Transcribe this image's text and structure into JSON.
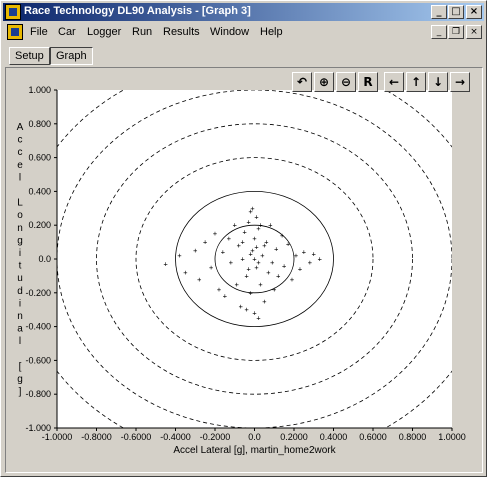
{
  "window": {
    "title": "Race Technology DL90 Analysis - [Graph 3]"
  },
  "menubar": [
    "File",
    "Car",
    "Logger",
    "Run",
    "Results",
    "Window",
    "Help"
  ],
  "tabs": [
    {
      "label": "Setup",
      "active": false
    },
    {
      "label": "Graph",
      "active": true
    }
  ],
  "toolbar": [
    {
      "icon": "undo-zoom-icon",
      "glyph": "↶"
    },
    {
      "icon": "zoom-in-icon",
      "glyph": "⊕"
    },
    {
      "icon": "zoom-out-icon",
      "glyph": "⊖"
    },
    {
      "icon": "zoom-reset-icon",
      "glyph": "R"
    },
    {
      "icon": "pan-left-icon",
      "glyph": "←"
    },
    {
      "icon": "pan-up-icon",
      "glyph": "↑"
    },
    {
      "icon": "pan-down-icon",
      "glyph": "↓"
    },
    {
      "icon": "pan-right-icon",
      "glyph": "→"
    }
  ],
  "chart_data": {
    "type": "scatter",
    "title": "",
    "xlabel": "Accel Lateral [g], martin_home2work",
    "ylabel": "Accel Longitudinal [g]",
    "xlim": [
      -1.0,
      1.0
    ],
    "ylim": [
      -1.0,
      1.0
    ],
    "x_ticks": [
      "-1.0000",
      "-0.8000",
      "-0.6000",
      "-0.4000",
      "-0.2000",
      "0.0",
      "0.2000",
      "0.4000",
      "0.6000",
      "0.8000",
      "1.0000"
    ],
    "y_ticks": [
      "1.000",
      "0.800",
      "0.600",
      "0.400",
      "0.200",
      "0.0",
      "-0.200",
      "-0.400",
      "-0.600",
      "-0.800",
      "-1.000"
    ],
    "reference_circles": [
      {
        "radius": 0.2,
        "style": "solid"
      },
      {
        "radius": 0.4,
        "style": "solid"
      },
      {
        "radius": 0.6,
        "style": "dashed"
      },
      {
        "radius": 0.8,
        "style": "dashed"
      },
      {
        "radius": 1.0,
        "style": "dashed"
      },
      {
        "radius": 1.2,
        "style": "dashed"
      }
    ],
    "series": [
      {
        "marker": "+",
        "points": [
          [
            -0.45,
            -0.03
          ],
          [
            -0.38,
            0.02
          ],
          [
            -0.35,
            -0.08
          ],
          [
            -0.3,
            0.05
          ],
          [
            -0.28,
            -0.12
          ],
          [
            -0.25,
            0.1
          ],
          [
            -0.22,
            -0.05
          ],
          [
            -0.2,
            0.15
          ],
          [
            -0.18,
            -0.18
          ],
          [
            -0.16,
            0.04
          ],
          [
            -0.15,
            -0.22
          ],
          [
            -0.13,
            0.12
          ],
          [
            -0.12,
            -0.02
          ],
          [
            -0.1,
            0.2
          ],
          [
            -0.09,
            -0.15
          ],
          [
            -0.08,
            0.08
          ],
          [
            -0.07,
            -0.28
          ],
          [
            -0.06,
            0.0
          ],
          [
            -0.05,
            0.16
          ],
          [
            -0.04,
            -0.1
          ],
          [
            -0.03,
            0.22
          ],
          [
            -0.02,
            -0.2
          ],
          [
            -0.01,
            0.05
          ],
          [
            0.0,
            -0.32
          ],
          [
            0.0,
            0.12
          ],
          [
            0.01,
            -0.05
          ],
          [
            0.02,
            0.18
          ],
          [
            0.03,
            -0.15
          ],
          [
            0.04,
            0.02
          ],
          [
            0.05,
            -0.25
          ],
          [
            0.06,
            0.1
          ],
          [
            0.07,
            -0.08
          ],
          [
            0.08,
            0.2
          ],
          [
            0.09,
            -0.02
          ],
          [
            0.1,
            -0.18
          ],
          [
            0.11,
            0.06
          ],
          [
            0.12,
            -0.1
          ],
          [
            0.14,
            0.14
          ],
          [
            0.15,
            -0.04
          ],
          [
            0.17,
            0.09
          ],
          [
            0.19,
            -0.12
          ],
          [
            0.21,
            0.02
          ],
          [
            0.23,
            -0.06
          ],
          [
            0.25,
            0.04
          ],
          [
            0.28,
            -0.02
          ],
          [
            0.3,
            0.03
          ],
          [
            0.33,
            0.0
          ],
          [
            -0.02,
            0.28
          ],
          [
            0.01,
            0.25
          ],
          [
            -0.04,
            -0.3
          ],
          [
            0.02,
            -0.35
          ],
          [
            -0.01,
            0.3
          ],
          [
            0.03,
            0.2
          ],
          [
            -0.06,
            0.1
          ],
          [
            0.05,
            0.08
          ],
          [
            -0.03,
            -0.06
          ],
          [
            0.0,
            0.0
          ],
          [
            0.02,
            -0.02
          ],
          [
            -0.02,
            0.03
          ],
          [
            0.01,
            0.07
          ]
        ]
      }
    ]
  }
}
